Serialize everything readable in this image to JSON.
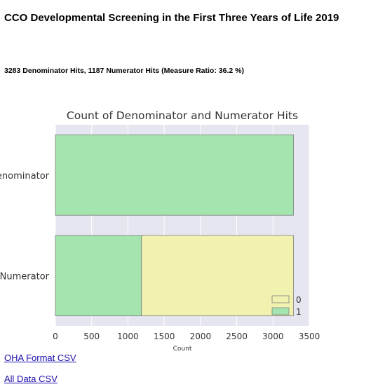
{
  "page": {
    "title": "CCO Developmental Screening in the First Three Years of Life 2019",
    "summary": "3283 Denominator Hits, 1187 Numerator Hits (Measure Ratio: 36.2 %)"
  },
  "links": {
    "oha_format_csv": "OHA Format CSV",
    "all_data_csv": "All Data CSV"
  },
  "chart_data": {
    "type": "bar",
    "orientation": "horizontal",
    "stacked": true,
    "title": "Count of Denominator and Numerator Hits",
    "xlabel": "Count",
    "ylabel": "",
    "categories": [
      "Denominator",
      "Numerator"
    ],
    "series": [
      {
        "name": "1",
        "color": "#a3e4af",
        "values": [
          3283,
          1187
        ]
      },
      {
        "name": "0",
        "color": "#f2f2b0",
        "values": [
          0,
          2096
        ]
      }
    ],
    "xlim": [
      0,
      3500
    ],
    "xticks": [
      0,
      500,
      1000,
      1500,
      2000,
      2500,
      3000,
      3500
    ],
    "grid": true,
    "background": "#e5e6f0",
    "legend_position": "bottom-right",
    "legend_order": [
      "0",
      "1"
    ]
  }
}
